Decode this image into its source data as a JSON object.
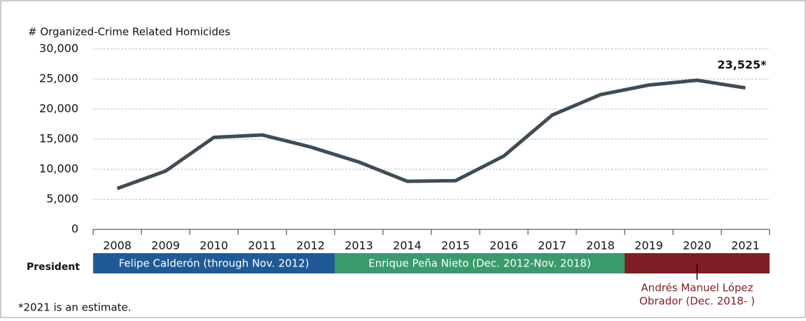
{
  "chart_data": {
    "type": "line",
    "y_label": "# Organized-Crime Related Homicides",
    "categories": [
      "2008",
      "2009",
      "2010",
      "2011",
      "2012",
      "2013",
      "2014",
      "2015",
      "2016",
      "2017",
      "2018",
      "2019",
      "2020",
      "2021"
    ],
    "values": [
      6800,
      9700,
      15300,
      15700,
      13700,
      11200,
      8000,
      8100,
      12200,
      19000,
      22400,
      24000,
      24800,
      23525
    ],
    "value_labels": [
      null,
      null,
      null,
      null,
      null,
      null,
      null,
      null,
      null,
      null,
      null,
      null,
      null,
      "23,525*"
    ],
    "color": "#3e4c56",
    "ylim": [
      0,
      30000
    ],
    "yticks": [
      0,
      {
        "value": 5000,
        "label": "5,000"
      },
      {
        "value": 10000,
        "label": "10,000"
      },
      {
        "value": 15000,
        "label": "15,000"
      },
      {
        "value": 20000,
        "label": "20,000"
      },
      {
        "value": 25000,
        "label": "25,000"
      },
      {
        "value": 30000,
        "label": "30,000"
      }
    ],
    "grid": true,
    "president_label": "President",
    "presidents": [
      {
        "name": [
          "Felipe Calderón (through Nov. 2012)"
        ],
        "start": "2008",
        "end": "2012",
        "color": "#1f5a96",
        "label_inside": true
      },
      {
        "name": [
          "Enrique Peña Nieto (Dec. 2012-Nov. 2018)"
        ],
        "start": "2013",
        "end": "2018",
        "color": "#3a9a6c",
        "label_inside": true
      },
      {
        "name": [
          "Andrés Manuel López",
          "Obrador (Dec. 2018- )"
        ],
        "start": "2019",
        "end": "2021",
        "color": "#7f1d24",
        "label_inside": false
      }
    ],
    "note": "*2021 is an estimate."
  }
}
